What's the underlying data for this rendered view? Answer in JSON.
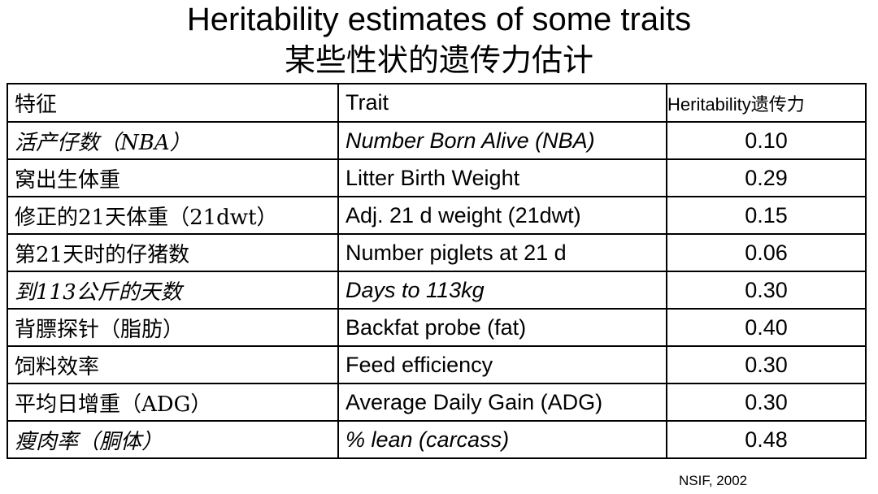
{
  "title_en": "Heritability estimates of some traits",
  "title_zh": "某些性状的遗传力估计",
  "table": {
    "headers": {
      "zh": "特征",
      "trait": "Trait",
      "heritability": "Heritability遗传力"
    },
    "rows": [
      {
        "zh": "活产仔数（NBA）",
        "trait": "Number Born Alive (NBA)",
        "value": "0.10",
        "italic": true
      },
      {
        "zh": "窝出生体重",
        "trait": "Litter Birth Weight",
        "value": "0.29",
        "italic": false
      },
      {
        "zh": "修正的21天体重（21dwt）",
        "trait": "Adj. 21 d weight (21dwt)",
        "value": "0.15",
        "italic": false
      },
      {
        "zh": "第21天时的仔猪数",
        "trait": "Number piglets at 21 d",
        "value": "0.06",
        "italic": false
      },
      {
        "zh": "到113公斤的天数",
        "trait": "Days to 113kg",
        "value": "0.30",
        "italic": true
      },
      {
        "zh": "背膘探针（脂肪）",
        "trait": "Backfat probe (fat)",
        "value": "0.40",
        "italic": false
      },
      {
        "zh": "饲料效率",
        "trait": "Feed efficiency",
        "value": "0.30",
        "italic": false
      },
      {
        "zh": "平均日增重（ADG）",
        "trait": "Average Daily Gain (ADG)",
        "value": "0.30",
        "italic": false
      },
      {
        "zh": "瘦肉率（胴体）",
        "trait": "% lean (carcass)",
        "value": "0.48",
        "italic": true
      }
    ]
  },
  "source": "NSIF, 2002"
}
